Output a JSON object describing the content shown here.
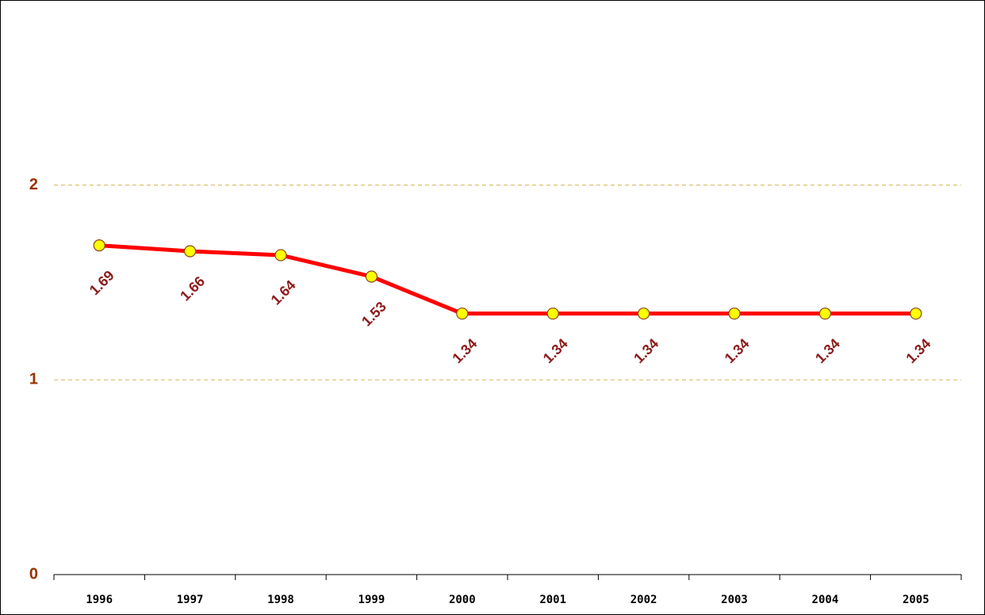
{
  "chart_data": {
    "type": "line",
    "categories": [
      "1996",
      "1997",
      "1998",
      "1999",
      "2000",
      "2001",
      "2002",
      "2003",
      "2004",
      "2005"
    ],
    "series": [
      {
        "color": "#ff0000",
        "marker_color": "#ffff00",
        "label_color": "#8b1a1a",
        "values": [
          1.69,
          1.66,
          1.64,
          1.53,
          1.34,
          1.34,
          1.34,
          1.34,
          1.34,
          1.34
        ]
      }
    ],
    "ylim": [
      0,
      2.95
    ],
    "yticks": [
      0,
      1,
      2
    ],
    "grid": true
  }
}
